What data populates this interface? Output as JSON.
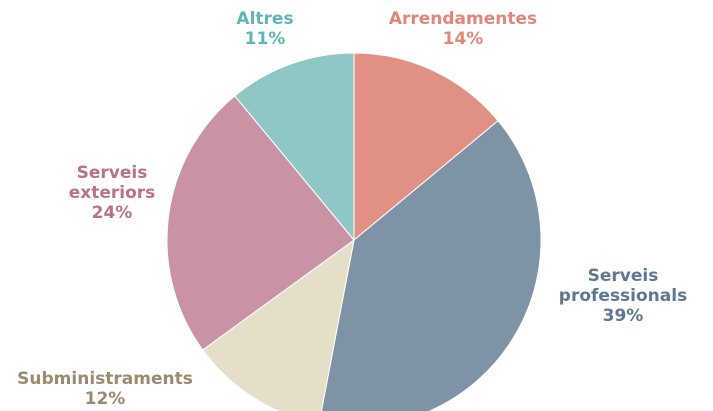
{
  "chart_data": {
    "type": "pie",
    "categories": [
      "Arrendamentes",
      "Serveis professionals",
      "Subministraments",
      "Serveis exteriors",
      "Altres"
    ],
    "values": [
      14,
      39,
      12,
      24,
      11
    ],
    "value_labels": [
      "14%",
      "39%",
      "12%",
      "24%",
      "11%"
    ],
    "colors": [
      "#e09183",
      "#7f93a6",
      "#e5dec9",
      "#c993a5",
      "#8fc7c5"
    ],
    "label_colors": [
      "#e0877a",
      "#5e7891",
      "#9c8a6e",
      "#b9728a",
      "#5fb7b5"
    ]
  }
}
